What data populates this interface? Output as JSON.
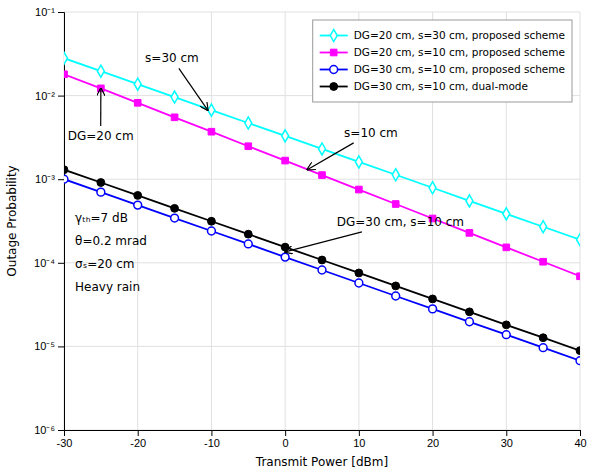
{
  "chart_data": {
    "type": "line",
    "xlabel": "Transmit Power [dBm]",
    "ylabel": "Outage Probability",
    "x": [
      -30,
      -25,
      -20,
      -15,
      -10,
      -5,
      0,
      5,
      10,
      15,
      20,
      25,
      30,
      35,
      40
    ],
    "xlim": [
      -30,
      40
    ],
    "xticks": [
      -30,
      -20,
      -10,
      0,
      10,
      20,
      30,
      40
    ],
    "ylim": [
      1e-06,
      0.1
    ],
    "yticks": [
      {
        "value": 1e-06,
        "label": "10⁻⁶"
      },
      {
        "value": 1e-05,
        "label": "10⁻⁵"
      },
      {
        "value": 0.0001,
        "label": "10⁻⁴"
      },
      {
        "value": 0.001,
        "label": "10⁻³"
      },
      {
        "value": 0.01,
        "label": "10⁻²"
      },
      {
        "value": 0.1,
        "label": "10⁻¹"
      }
    ],
    "log": "y",
    "grid": true,
    "legend": "upper right",
    "series": [
      {
        "name": "DG=20 cm, s=30 cm, proposed scheme",
        "color": "cyan",
        "marker": "diamond-open",
        "values": [
          0.028,
          0.0196,
          0.0137,
          0.0096,
          0.0067,
          0.0047,
          0.0033,
          0.0023,
          0.00161,
          0.00113,
          0.00079,
          0.00055,
          0.000385,
          0.00027,
          0.000189
        ]
      },
      {
        "name": "DG=20 cm, s=10 cm, proposed scheme",
        "color": "magenta",
        "marker": "square",
        "values": [
          0.018,
          0.0122,
          0.0082,
          0.0055,
          0.0037,
          0.00248,
          0.00167,
          0.00112,
          0.000752,
          0.000505,
          0.000339,
          0.000228,
          0.000153,
          0.000103,
          6.9e-05
        ]
      },
      {
        "name": "DG=30 cm, s=10 cm, proposed scheme",
        "color": "blue",
        "marker": "circle-open",
        "values": [
          0.001,
          0.0007,
          0.00049,
          0.000343,
          0.00024,
          0.000168,
          0.000117,
          8.2e-05,
          5.73e-05,
          4.01e-05,
          2.81e-05,
          1.97e-05,
          1.38e-05,
          9.65e-06,
          6.75e-06
        ]
      },
      {
        "name": "DG=30 cm, s=10 cm, dual-mode",
        "color": "black",
        "marker": "circle",
        "values": [
          0.0013,
          0.000913,
          0.00064,
          0.000448,
          0.000314,
          0.00022,
          0.000154,
          0.000108,
          7.56e-05,
          5.29e-05,
          3.7e-05,
          2.59e-05,
          1.81e-05,
          1.27e-05,
          8.9e-06
        ]
      }
    ],
    "annotations": [
      {
        "text": "s=30 cm",
        "x": -10.5,
        "y": 0.0067,
        "text_x": -19,
        "text_y": 0.028
      },
      {
        "text": "DG=20 cm",
        "x": -25,
        "y": 0.0122,
        "text_x": -29.5,
        "text_y": 0.0033
      },
      {
        "text": "s=10 cm",
        "x": 3,
        "y": 0.0013,
        "text_x": 8,
        "text_y": 0.0036
      },
      {
        "text": "DG=30 cm, s=10 cm",
        "x": 0,
        "y": 0.000135,
        "text_x": 7,
        "text_y": 0.00031
      },
      {
        "text": "γₜₕ=7 dB",
        "x": -28.5,
        "y": 0.00035
      },
      {
        "text": "θ=0.2 mrad",
        "x": -28.5,
        "y": 0.000185
      },
      {
        "text": "σₛ=20 cm",
        "x": -28.5,
        "y": 9.8e-05
      },
      {
        "text": "Heavy rain",
        "x": -28.5,
        "y": 5.2e-05
      }
    ]
  }
}
